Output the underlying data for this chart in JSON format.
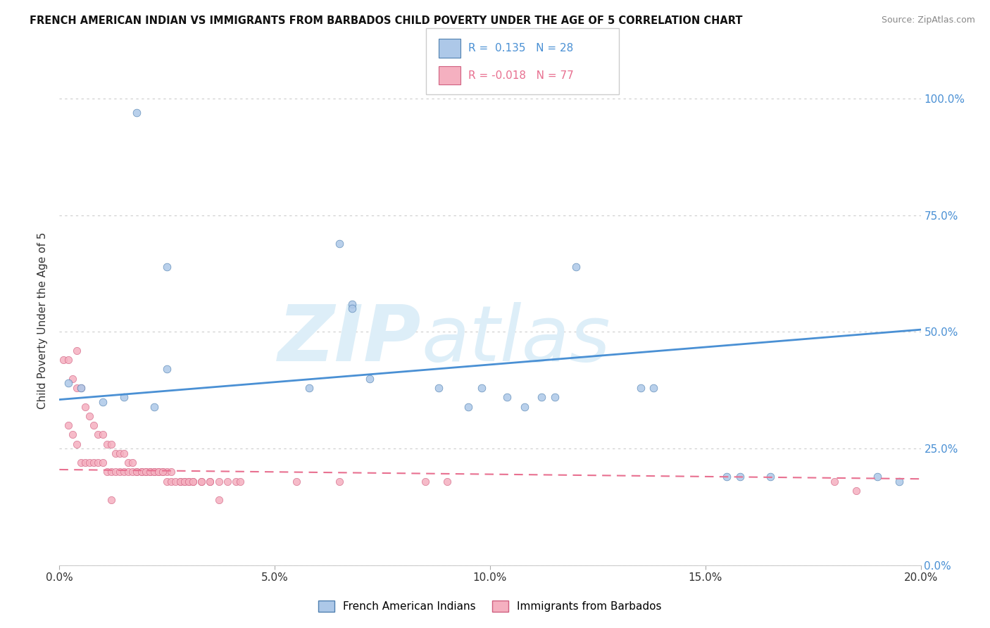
{
  "title": "FRENCH AMERICAN INDIAN VS IMMIGRANTS FROM BARBADOS CHILD POVERTY UNDER THE AGE OF 5 CORRELATION CHART",
  "source": "Source: ZipAtlas.com",
  "ylabel": "Child Poverty Under the Age of 5",
  "legend1_label": "French American Indians",
  "legend2_label": "Immigrants from Barbados",
  "r1": 0.135,
  "n1": 28,
  "r2": -0.018,
  "n2": 77,
  "color1": "#adc8e8",
  "color2": "#f5b0c0",
  "line1_color": "#4a90d4",
  "line2_color": "#e87090",
  "xmin": 0.0,
  "xmax": 0.2,
  "ymin": 0.0,
  "ymax": 1.05,
  "blue_line_x0": 0.0,
  "blue_line_y0": 0.355,
  "blue_line_x1": 0.2,
  "blue_line_y1": 0.505,
  "pink_line_x0": 0.0,
  "pink_line_y0": 0.205,
  "pink_line_x1": 0.2,
  "pink_line_y1": 0.185,
  "blue_scatter_x": [
    0.018,
    0.025,
    0.025,
    0.058,
    0.065,
    0.068,
    0.068,
    0.072,
    0.088,
    0.095,
    0.098,
    0.104,
    0.108,
    0.112,
    0.115,
    0.12,
    0.135,
    0.138,
    0.155,
    0.158,
    0.165,
    0.19,
    0.195,
    0.002,
    0.005,
    0.01,
    0.015,
    0.022
  ],
  "blue_scatter_y": [
    0.97,
    0.64,
    0.42,
    0.38,
    0.69,
    0.56,
    0.55,
    0.4,
    0.38,
    0.34,
    0.38,
    0.36,
    0.34,
    0.36,
    0.36,
    0.64,
    0.38,
    0.38,
    0.19,
    0.19,
    0.19,
    0.19,
    0.18,
    0.39,
    0.38,
    0.35,
    0.36,
    0.34
  ],
  "pink_scatter_x": [
    0.001,
    0.002,
    0.003,
    0.004,
    0.005,
    0.006,
    0.007,
    0.008,
    0.009,
    0.01,
    0.011,
    0.012,
    0.013,
    0.014,
    0.015,
    0.016,
    0.017,
    0.018,
    0.019,
    0.02,
    0.021,
    0.022,
    0.023,
    0.024,
    0.025,
    0.026,
    0.028,
    0.029,
    0.03,
    0.031,
    0.033,
    0.035,
    0.037,
    0.039,
    0.041,
    0.002,
    0.003,
    0.004,
    0.005,
    0.006,
    0.007,
    0.008,
    0.009,
    0.01,
    0.011,
    0.012,
    0.013,
    0.014,
    0.015,
    0.016,
    0.017,
    0.018,
    0.019,
    0.02,
    0.021,
    0.022,
    0.023,
    0.024,
    0.025,
    0.026,
    0.027,
    0.028,
    0.029,
    0.03,
    0.031,
    0.033,
    0.035,
    0.037,
    0.042,
    0.055,
    0.065,
    0.085,
    0.09,
    0.18,
    0.185,
    0.004,
    0.012
  ],
  "pink_scatter_y": [
    0.44,
    0.44,
    0.4,
    0.38,
    0.38,
    0.34,
    0.32,
    0.3,
    0.28,
    0.28,
    0.26,
    0.26,
    0.24,
    0.24,
    0.24,
    0.22,
    0.22,
    0.2,
    0.2,
    0.2,
    0.2,
    0.2,
    0.2,
    0.2,
    0.2,
    0.2,
    0.18,
    0.18,
    0.18,
    0.18,
    0.18,
    0.18,
    0.18,
    0.18,
    0.18,
    0.3,
    0.28,
    0.26,
    0.22,
    0.22,
    0.22,
    0.22,
    0.22,
    0.22,
    0.2,
    0.2,
    0.2,
    0.2,
    0.2,
    0.2,
    0.2,
    0.2,
    0.2,
    0.2,
    0.2,
    0.2,
    0.2,
    0.2,
    0.18,
    0.18,
    0.18,
    0.18,
    0.18,
    0.18,
    0.18,
    0.18,
    0.18,
    0.14,
    0.18,
    0.18,
    0.18,
    0.18,
    0.18,
    0.18,
    0.16,
    0.46,
    0.14
  ]
}
